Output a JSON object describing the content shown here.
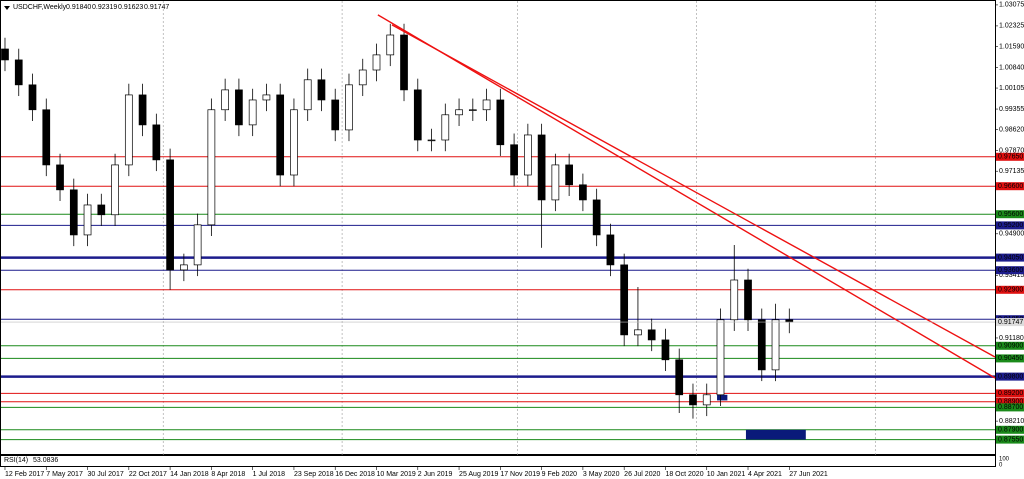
{
  "chart_data": {
    "type": "candlestick",
    "symbol": "USDCHF,Weekly",
    "header_ohlc": [
      {
        "value": 0.9184,
        "label": "0.91840"
      },
      0.92319,
      0.91623,
      0.91747
    ],
    "x": [
      0,
      4,
      8,
      12,
      16,
      20,
      24,
      28,
      32,
      36,
      40,
      44,
      48,
      52,
      56,
      60,
      64,
      68,
      72,
      76,
      80,
      84,
      88,
      92,
      96,
      100,
      104,
      108,
      112,
      116,
      120,
      124,
      128,
      132,
      136,
      140,
      144,
      148,
      152,
      156,
      160,
      164,
      168,
      172,
      176,
      180,
      184,
      188,
      192,
      196,
      200,
      204,
      208,
      212,
      216,
      220,
      224,
      228
    ],
    "open": [
      1.015,
      1.0111,
      1.0022,
      0.9933,
      0.9736,
      0.9647,
      0.9486,
      0.9593,
      0.9558,
      0.9736,
      0.9986,
      0.9879,
      0.9754,
      0.9361,
      0.9379,
      0.9522,
      0.9933,
      1.0004,
      0.9879,
      0.9968,
      0.9986,
      0.97,
      0.9933,
      1.004,
      0.9968,
      0.9861,
      1.0022,
      1.0075,
      1.0129,
      1.02,
      1.0004,
      0.9825,
      0.9825,
      0.9915,
      0.9933,
      0.9933,
      0.9968,
      0.9808,
      0.97,
      0.9843,
      0.9611,
      0.9736,
      0.9665,
      0.9611,
      0.9486,
      0.9379,
      0.9129,
      0.9147,
      0.9111,
      0.904,
      0.8915,
      0.8879,
      0.8915,
      0.9183,
      0.9325,
      0.9183,
      0.9004,
      0.9183
    ],
    "high": [
      1.019,
      1.0151,
      1.0062,
      0.9973,
      0.9776,
      0.9687,
      0.9633,
      0.9633,
      0.9776,
      1.0026,
      1.0026,
      0.9919,
      0.9794,
      0.9419,
      0.9562,
      0.9973,
      1.0044,
      1.0044,
      1.0008,
      1.0026,
      1.0026,
      0.9973,
      1.008,
      1.008,
      1.0008,
      1.0062,
      1.0115,
      1.0169,
      1.024,
      1.024,
      1.0044,
      0.9865,
      0.9955,
      0.9973,
      0.9973,
      1.0008,
      1.0008,
      0.9848,
      0.9883,
      0.9883,
      0.9776,
      0.9776,
      0.9705,
      0.9651,
      0.9526,
      0.9419,
      0.93,
      0.9187,
      0.9151,
      0.908,
      0.8955,
      0.8955,
      0.9223,
      0.945,
      0.9365,
      0.9223,
      0.924,
      0.9223
    ],
    "low": [
      1.0071,
      0.9982,
      0.9893,
      0.9696,
      0.9607,
      0.9446,
      0.9446,
      0.9518,
      0.9518,
      0.9696,
      0.9839,
      0.9714,
      0.929,
      0.9321,
      0.9339,
      0.9482,
      0.9893,
      0.9839,
      0.9839,
      0.9928,
      0.966,
      0.966,
      0.9893,
      0.9928,
      0.9821,
      0.9821,
      0.9982,
      1.0035,
      1.0089,
      0.9964,
      0.9785,
      0.9785,
      0.9785,
      0.9875,
      0.9893,
      0.9893,
      0.9768,
      0.966,
      0.966,
      0.944,
      0.9571,
      0.9625,
      0.9571,
      0.9446,
      0.9339,
      0.9089,
      0.9089,
      0.9071,
      0.9,
      0.885,
      0.883,
      0.8839,
      0.8875,
      0.9143,
      0.9143,
      0.8964,
      0.8964,
      0.9135
    ],
    "close": [
      1.0111,
      1.0022,
      0.9933,
      0.9736,
      0.9647,
      0.9486,
      0.9593,
      0.9558,
      0.9736,
      0.9986,
      0.9879,
      0.9754,
      0.9361,
      0.9379,
      0.9522,
      0.9933,
      1.0004,
      0.9879,
      0.9968,
      0.9986,
      0.97,
      0.9933,
      1.004,
      0.9968,
      0.9861,
      1.0022,
      1.0075,
      1.0129,
      1.02,
      1.0004,
      0.9825,
      0.9825,
      0.9915,
      0.9933,
      0.9933,
      0.9968,
      0.9808,
      0.97,
      0.9843,
      0.9611,
      0.9736,
      0.9665,
      0.9611,
      0.9486,
      0.9379,
      0.9129,
      0.9147,
      0.9111,
      0.904,
      0.8915,
      0.8879,
      0.8915,
      0.9183,
      0.9325,
      0.9183,
      0.9004,
      0.9183,
      0.9175
    ],
    "xlim": [
      -1.45,
      287.8
    ],
    "ylim": [
      0.87,
      1.0325
    ],
    "xticks": [
      {
        "value": 0,
        "label": "12 Feb 2017"
      },
      {
        "value": 12,
        "label": "7 May 2017"
      },
      {
        "value": 24,
        "label": "30 Jul 2017"
      },
      {
        "value": 36,
        "label": "22 Oct 2017"
      },
      {
        "value": 48,
        "label": "14 Jan 2018"
      },
      {
        "value": 60,
        "label": "8 Apr 2018"
      },
      {
        "value": 72,
        "label": "1 Jul 2018"
      },
      {
        "value": 84,
        "label": "23 Sep 2018"
      },
      {
        "value": 96,
        "label": "16 Dec 2018"
      },
      {
        "value": 108,
        "label": "10 Mar 2019"
      },
      {
        "value": 120,
        "label": "2 Jun 2019"
      },
      {
        "value": 132,
        "label": "25 Aug 2019"
      },
      {
        "value": 144,
        "label": "17 Nov 2019"
      },
      {
        "value": 156,
        "label": "9 Feb 2020"
      },
      {
        "value": 168,
        "label": "3 May 2020"
      },
      {
        "value": 180,
        "label": "26 Jul 2020"
      },
      {
        "value": 192,
        "label": "18 Oct 2020"
      },
      {
        "value": 204,
        "label": "10 Jan 2021"
      },
      {
        "value": 216,
        "label": "4 Apr 2021"
      },
      {
        "value": 228,
        "label": "27 Jun 2021"
      }
    ],
    "yticks": [
      1.03075,
      1.02325,
      {
        "value": 1.0159,
        "label": "1.01590"
      },
      {
        "value": 1.0084,
        "label": "1.00840"
      },
      1.00105,
      0.99355,
      {
        "value": 0.9862,
        "label": "0.98620"
      },
      {
        "value": 0.9787,
        "label": "0.97870"
      },
      0.97135,
      {
        "value": 0.949,
        "label": "0.94900"
      },
      0.93415,
      {
        "value": 0.9118,
        "label": "0.91180"
      },
      {
        "value": 0.8821,
        "label": "0.88210"
      }
    ],
    "period_separators": [
      46,
      98,
      149,
      201,
      253
    ],
    "levels": [
      {
        "value": 0.9765,
        "label": "0.97650",
        "color": "#e01010",
        "width": 1
      },
      {
        "value": 0.966,
        "label": "0.96600",
        "color": "#e01010",
        "width": 1
      },
      {
        "value": 0.956,
        "label": "0.95600",
        "color": "#1a8a1a",
        "width": 1
      },
      {
        "value": 0.952,
        "label": "0.95200",
        "color": "#1c1c8c",
        "width": 1
      },
      {
        "value": 0.9405,
        "label": "0.94050",
        "color": "#1c1c8c",
        "width": 2.5
      },
      {
        "value": 0.936,
        "label": "0.93600",
        "color": "#1c1c8c",
        "width": 1
      },
      {
        "value": 0.929,
        "label": "0.92900",
        "color": "#e01010",
        "width": 1
      },
      {
        "value": 0.9185,
        "label": "0.91850",
        "color": "#1c1c8c",
        "width": 1
      },
      {
        "value": 0.909,
        "label": "0.90900",
        "color": "#1a8a1a",
        "width": 1
      },
      {
        "value": 0.9045,
        "label": "0.90450",
        "color": "#1a8a1a",
        "width": 1
      },
      {
        "value": 0.898,
        "label": "0.89800",
        "color": "#1c1c8c",
        "width": 2.5
      },
      {
        "value": 0.892,
        "label": "0.89200",
        "color": "#e01010",
        "width": 1
      },
      {
        "value": 0.889,
        "label": "0.88900",
        "color": "#e01010",
        "width": 1
      },
      {
        "value": 0.887,
        "label": "0.88700",
        "color": "#1a8a1a",
        "width": 1
      },
      {
        "value": 0.879,
        "label": "0.87900",
        "color": "#1a8a1a",
        "width": 1
      },
      {
        "value": 0.8755,
        "label": "0.87550",
        "color": "#1a8a1a",
        "width": 1
      }
    ],
    "current_price": 0.91747,
    "trendlines": [
      {
        "x": [
          108.4,
          287.8
        ],
        "y": [
          1.0272,
          0.8975
        ],
        "color": "#ee1111"
      },
      {
        "x": [
          112.5,
          287.8
        ],
        "y": [
          1.0236,
          0.905
        ],
        "color": "#ee1111"
      }
    ],
    "zones": [
      {
        "x": [
          215.4,
          232.8
        ],
        "y": [
          0.8755,
          0.879
        ],
        "color": "#0a1a7a"
      },
      {
        "x": [
          207,
          210
        ],
        "y": [
          0.8895,
          0.8915
        ],
        "color": "#0a1a7a"
      }
    ],
    "indicator": {
      "name": "RSI(14)",
      "value": 53.0836,
      "scale": [
        100,
        0
      ]
    }
  }
}
